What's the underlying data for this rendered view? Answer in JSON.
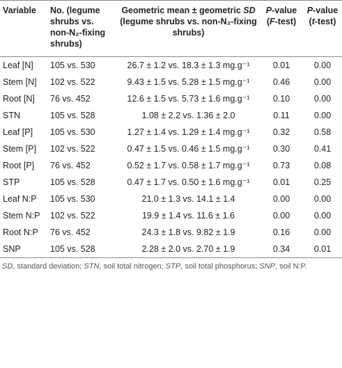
{
  "table": {
    "header": [
      [
        {
          "text": "Variable"
        }
      ],
      [
        {
          "text": "No. (legume shrubs vs. non-N₂-fixing shrubs)"
        }
      ],
      [
        {
          "text": "Geometric mean ± geometric "
        },
        {
          "text": "SD",
          "italic": true
        },
        {
          "text": " (legume shrubs vs. non-N₂-fixing shrubs)"
        }
      ],
      [
        {
          "text": "P",
          "italic": true
        },
        {
          "text": "-value ("
        },
        {
          "text": "F",
          "italic": true
        },
        {
          "text": "-test)"
        }
      ],
      [
        {
          "text": "P",
          "italic": true
        },
        {
          "text": "-value ("
        },
        {
          "text": "t",
          "italic": true
        },
        {
          "text": "-test)"
        }
      ]
    ],
    "rows": [
      [
        "Leaf [N]",
        "105 vs. 530",
        "26.7 ± 1.2 vs. 18.3 ± 1.3 mg.g⁻¹",
        "0.01",
        "0.00"
      ],
      [
        "Stem [N]",
        "102 vs. 522",
        "9.43 ± 1.5 vs. 5.28 ± 1.5 mg.g⁻¹",
        "0.46",
        "0.00"
      ],
      [
        "Root [N]",
        "76 vs. 452",
        "12.6 ± 1.5 vs. 5.73 ± 1.6 mg.g⁻¹",
        "0.10",
        "0.00"
      ],
      [
        "STN",
        "105 vs. 528",
        "1.08 ± 2.2 vs. 1.36 ± 2.0",
        "0.11",
        "0.00"
      ],
      [
        "Leaf [P]",
        "105 vs. 530",
        "1.27 ± 1.4 vs. 1.29 ± 1.4 mg.g⁻¹",
        "0.32",
        "0.58"
      ],
      [
        "Stem [P]",
        "102 vs. 522",
        "0.47 ± 1.5 vs. 0.46 ± 1.5 mg.g⁻¹",
        "0.30",
        "0.41"
      ],
      [
        "Root [P]",
        "76 vs. 452",
        "0.52 ± 1.7 vs. 0.58 ± 1.7 mg.g⁻¹",
        "0.73",
        "0.08"
      ],
      [
        "STP",
        "105 vs. 528",
        "0.47 ± 1.7 vs. 0.50 ± 1.6 mg.g⁻¹",
        "0.01",
        "0.25"
      ],
      [
        "Leaf N:P",
        "105 vs. 530",
        "21.0 ± 1.3 vs. 14.1 ± 1.4",
        "0.00",
        "0.00"
      ],
      [
        "Stem N:P",
        "102 vs. 522",
        "19.9 ± 1.4 vs. 11.6 ± 1.6",
        "0.00",
        "0.00"
      ],
      [
        "Root N:P",
        "76 vs. 452",
        "24.3 ± 1.8 vs. 9.82 ± 1.9",
        "0.16",
        "0.00"
      ],
      [
        "SNP",
        "105 vs. 528",
        "2.28 ± 2.0 vs. 2.70 ± 1.9",
        "0.34",
        "0.01"
      ]
    ],
    "footnote": [
      {
        "text": "SD",
        "italic": true
      },
      {
        "text": ", standard deviation; "
      },
      {
        "text": "STN",
        "italic": true
      },
      {
        "text": ", soil total nitrogen; "
      },
      {
        "text": "STP",
        "italic": true
      },
      {
        "text": ", soil total phosphorus; "
      },
      {
        "text": "SNP",
        "italic": true
      },
      {
        "text": ", soil N:P."
      }
    ]
  }
}
